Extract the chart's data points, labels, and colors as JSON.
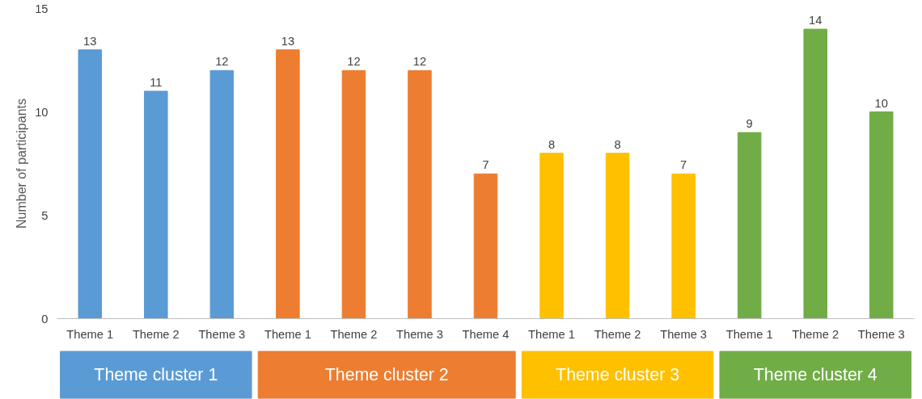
{
  "chart_data": {
    "type": "bar",
    "ylabel": "Number of participants",
    "categories": [
      "Theme 1",
      "Theme 2",
      "Theme 3",
      "Theme 1",
      "Theme 2",
      "Theme 3",
      "Theme 4",
      "Theme 1",
      "Theme 2",
      "Theme 3",
      "Theme 1",
      "Theme 2",
      "Theme 3"
    ],
    "series": [
      {
        "name": "Theme cluster 1",
        "color": "#5b9bd5",
        "values": [
          13,
          11,
          12,
          null,
          null,
          null,
          null,
          null,
          null,
          null,
          null,
          null,
          null
        ]
      },
      {
        "name": "Theme cluster 2",
        "color": "#ed7d31",
        "values": [
          null,
          null,
          null,
          13,
          12,
          12,
          7,
          null,
          null,
          null,
          null,
          null,
          null
        ]
      },
      {
        "name": "Theme cluster 3",
        "color": "#ffc000",
        "values": [
          null,
          null,
          null,
          null,
          null,
          null,
          null,
          8,
          8,
          7,
          null,
          null,
          null
        ]
      },
      {
        "name": "Theme cluster 4",
        "color": "#70ad47",
        "values": [
          null,
          null,
          null,
          null,
          null,
          null,
          null,
          null,
          null,
          null,
          9,
          14,
          10
        ]
      }
    ],
    "ylim": [
      0,
      15
    ],
    "yticks": [
      0,
      5,
      10,
      15
    ],
    "grid": false,
    "data_labels": true
  }
}
